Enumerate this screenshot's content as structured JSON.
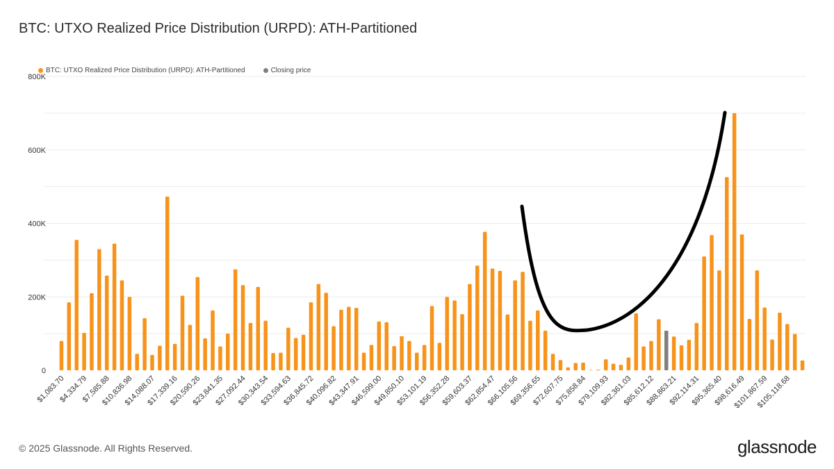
{
  "title": "BTC: UTXO Realized Price Distribution (URPD): ATH-Partitioned",
  "footer": {
    "copyright": "© 2025 Glassnode. All Rights Reserved.",
    "logo": "glassnode"
  },
  "colors": {
    "bar": "#f7931a",
    "closing": "#7f7f7f",
    "annotation": "#000000",
    "grid": "#ececec"
  },
  "chart_data": {
    "type": "bar",
    "title": "BTC: UTXO Realized Price Distribution (URPD): ATH-Partitioned",
    "xlabel": "",
    "ylabel": "",
    "ylim": [
      0,
      800000
    ],
    "grid": true,
    "legend_position": "top-left",
    "legend": [
      {
        "name": "BTC: UTXO Realized Price Distribution (URPD): ATH-Partitioned",
        "color": "#f7931a"
      },
      {
        "name": "Closing price",
        "color": "#7f7f7f"
      }
    ],
    "y_ticks": [
      {
        "value": 0,
        "label": "0"
      },
      {
        "value": 200000,
        "label": "200K"
      },
      {
        "value": 400000,
        "label": "400K"
      },
      {
        "value": 600000,
        "label": "600K"
      },
      {
        "value": 800000,
        "label": "800K"
      }
    ],
    "x_tick_labels": [
      "$1,083.70",
      "$4,334.79",
      "$7,585.88",
      "$10,836.98",
      "$14,088.07",
      "$17,339.16",
      "$20,590.26",
      "$23,841.35",
      "$27,092.44",
      "$30,343.54",
      "$33,594.63",
      "$36,845.72",
      "$40,096.82",
      "$43,347.91",
      "$46,599.00",
      "$49,850.10",
      "$53,101.19",
      "$56,352.28",
      "$59,603.37",
      "$62,854.47",
      "$66,105.56",
      "$69,356.65",
      "$72,607.75",
      "$75,858.84",
      "$79,109.93",
      "$82,361.03",
      "$85,612.12",
      "$88,863.21",
      "$92,114.31",
      "$95,365.40",
      "$98,616.49",
      "$101,867.59",
      "$105,118.68"
    ],
    "x_tick_every": 3,
    "values": [
      80000,
      185000,
      355000,
      102000,
      210000,
      330000,
      258000,
      345000,
      245000,
      200000,
      45000,
      142000,
      42000,
      67000,
      473000,
      72000,
      203000,
      124000,
      254000,
      87000,
      163000,
      65000,
      100000,
      275000,
      232000,
      129000,
      227000,
      135000,
      47000,
      48000,
      116000,
      88000,
      97000,
      185000,
      235000,
      211000,
      120000,
      165000,
      173000,
      170000,
      48000,
      69000,
      133000,
      131000,
      66000,
      93000,
      80000,
      48000,
      69000,
      175000,
      75000,
      200000,
      190000,
      153000,
      235000,
      285000,
      377000,
      277000,
      271000,
      152000,
      245000,
      268000,
      135000,
      163000,
      108000,
      45000,
      28000,
      8000,
      20000,
      21000,
      0,
      2000,
      30000,
      18000,
      15000,
      35000,
      155000,
      65000,
      80000,
      139000,
      108000,
      92000,
      68000,
      83000,
      129000,
      310000,
      368000,
      272000,
      526000,
      700000,
      370000,
      140000,
      272000,
      171000,
      84000,
      157000,
      126000,
      99000,
      27000
    ],
    "closing_price_index": 80,
    "annotation": "hand-drawn black curve"
  }
}
